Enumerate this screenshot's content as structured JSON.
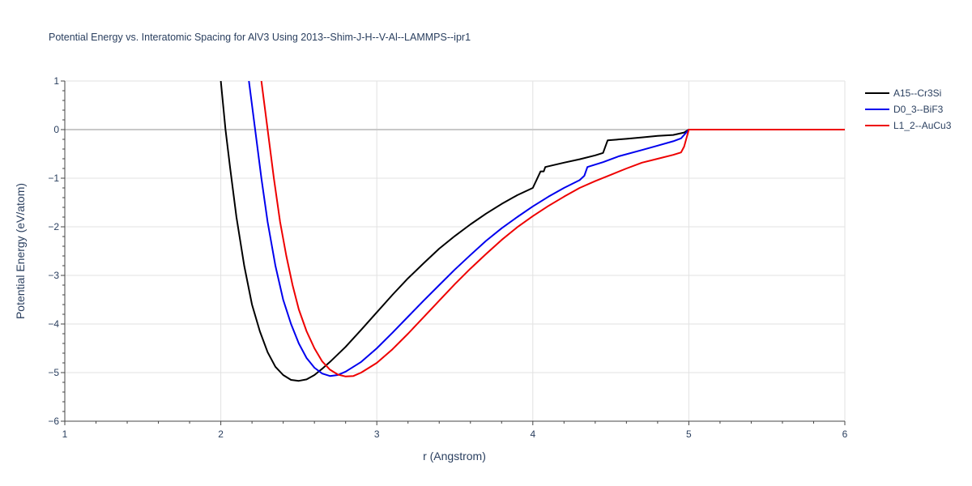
{
  "chart_data": {
    "type": "line",
    "title": "Potential Energy vs. Interatomic Spacing for AlV3 Using 2013--Shim-J-H--V-Al--LAMMPS--ipr1",
    "xlabel": "r (Angstrom)",
    "ylabel": "Potential Energy (eV/atom)",
    "xlim": [
      1,
      6
    ],
    "ylim": [
      -6,
      1
    ],
    "x_ticks": [
      1,
      2,
      3,
      4,
      5,
      6
    ],
    "y_ticks": [
      1,
      0,
      -1,
      -2,
      -3,
      -4,
      -5,
      -6
    ],
    "x_tick_labels": [
      "1",
      "2",
      "3",
      "4",
      "5",
      "6"
    ],
    "y_tick_labels": [
      "1",
      "0",
      "−1",
      "−2",
      "−3",
      "−4",
      "−5",
      "−6"
    ],
    "grid": true,
    "legend_position": "top-right",
    "series": [
      {
        "name": "A15--Cr3Si",
        "color": "#000000",
        "points": [
          [
            2.0,
            1.0
          ],
          [
            2.03,
            0.0
          ],
          [
            2.06,
            -0.8
          ],
          [
            2.1,
            -1.8
          ],
          [
            2.15,
            -2.8
          ],
          [
            2.2,
            -3.6
          ],
          [
            2.25,
            -4.15
          ],
          [
            2.3,
            -4.58
          ],
          [
            2.35,
            -4.88
          ],
          [
            2.4,
            -5.05
          ],
          [
            2.45,
            -5.15
          ],
          [
            2.5,
            -5.17
          ],
          [
            2.55,
            -5.14
          ],
          [
            2.6,
            -5.05
          ],
          [
            2.65,
            -4.92
          ],
          [
            2.7,
            -4.78
          ],
          [
            2.8,
            -4.47
          ],
          [
            2.9,
            -4.12
          ],
          [
            3.0,
            -3.76
          ],
          [
            3.1,
            -3.4
          ],
          [
            3.2,
            -3.06
          ],
          [
            3.3,
            -2.75
          ],
          [
            3.4,
            -2.45
          ],
          [
            3.5,
            -2.19
          ],
          [
            3.6,
            -1.95
          ],
          [
            3.7,
            -1.73
          ],
          [
            3.8,
            -1.53
          ],
          [
            3.9,
            -1.35
          ],
          [
            4.0,
            -1.2
          ],
          [
            4.05,
            -0.86
          ],
          [
            4.07,
            -0.86
          ],
          [
            4.08,
            -0.77
          ],
          [
            4.2,
            -0.68
          ],
          [
            4.3,
            -0.61
          ],
          [
            4.4,
            -0.53
          ],
          [
            4.45,
            -0.48
          ],
          [
            4.48,
            -0.22
          ],
          [
            4.6,
            -0.19
          ],
          [
            4.7,
            -0.16
          ],
          [
            4.8,
            -0.13
          ],
          [
            4.9,
            -0.11
          ],
          [
            4.97,
            -0.06
          ],
          [
            5.0,
            0.0
          ],
          [
            6.0,
            0.0
          ]
        ]
      },
      {
        "name": "D0_3--BiF3",
        "color": "#0000ee",
        "points": [
          [
            2.18,
            1.0
          ],
          [
            2.22,
            0.0
          ],
          [
            2.26,
            -1.0
          ],
          [
            2.3,
            -1.9
          ],
          [
            2.35,
            -2.8
          ],
          [
            2.4,
            -3.5
          ],
          [
            2.45,
            -4.0
          ],
          [
            2.5,
            -4.4
          ],
          [
            2.55,
            -4.7
          ],
          [
            2.6,
            -4.9
          ],
          [
            2.65,
            -5.02
          ],
          [
            2.7,
            -5.07
          ],
          [
            2.75,
            -5.05
          ],
          [
            2.8,
            -4.98
          ],
          [
            2.9,
            -4.78
          ],
          [
            3.0,
            -4.5
          ],
          [
            3.1,
            -4.18
          ],
          [
            3.2,
            -3.85
          ],
          [
            3.3,
            -3.52
          ],
          [
            3.4,
            -3.2
          ],
          [
            3.5,
            -2.88
          ],
          [
            3.6,
            -2.58
          ],
          [
            3.7,
            -2.29
          ],
          [
            3.8,
            -2.03
          ],
          [
            3.9,
            -1.8
          ],
          [
            4.0,
            -1.58
          ],
          [
            4.1,
            -1.38
          ],
          [
            4.2,
            -1.2
          ],
          [
            4.3,
            -1.04
          ],
          [
            4.33,
            -0.95
          ],
          [
            4.35,
            -0.77
          ],
          [
            4.45,
            -0.67
          ],
          [
            4.55,
            -0.55
          ],
          [
            4.7,
            -0.42
          ],
          [
            4.8,
            -0.33
          ],
          [
            4.9,
            -0.24
          ],
          [
            4.95,
            -0.18
          ],
          [
            5.0,
            0.0
          ],
          [
            6.0,
            0.0
          ]
        ]
      },
      {
        "name": "L1_2--AuCu3",
        "color": "#ee0000",
        "points": [
          [
            2.26,
            1.0
          ],
          [
            2.3,
            0.0
          ],
          [
            2.34,
            -1.0
          ],
          [
            2.38,
            -1.9
          ],
          [
            2.42,
            -2.6
          ],
          [
            2.46,
            -3.2
          ],
          [
            2.5,
            -3.7
          ],
          [
            2.55,
            -4.15
          ],
          [
            2.6,
            -4.5
          ],
          [
            2.65,
            -4.77
          ],
          [
            2.7,
            -4.94
          ],
          [
            2.75,
            -5.04
          ],
          [
            2.8,
            -5.08
          ],
          [
            2.85,
            -5.07
          ],
          [
            2.9,
            -5.0
          ],
          [
            3.0,
            -4.8
          ],
          [
            3.1,
            -4.52
          ],
          [
            3.2,
            -4.2
          ],
          [
            3.3,
            -3.86
          ],
          [
            3.4,
            -3.52
          ],
          [
            3.5,
            -3.18
          ],
          [
            3.6,
            -2.86
          ],
          [
            3.7,
            -2.56
          ],
          [
            3.8,
            -2.27
          ],
          [
            3.9,
            -2.01
          ],
          [
            4.0,
            -1.78
          ],
          [
            4.1,
            -1.57
          ],
          [
            4.2,
            -1.38
          ],
          [
            4.3,
            -1.2
          ],
          [
            4.4,
            -1.06
          ],
          [
            4.5,
            -0.93
          ],
          [
            4.6,
            -0.8
          ],
          [
            4.7,
            -0.68
          ],
          [
            4.8,
            -0.6
          ],
          [
            4.9,
            -0.52
          ],
          [
            4.95,
            -0.47
          ],
          [
            4.97,
            -0.35
          ],
          [
            5.0,
            0.0
          ],
          [
            6.0,
            0.0
          ]
        ]
      }
    ]
  }
}
